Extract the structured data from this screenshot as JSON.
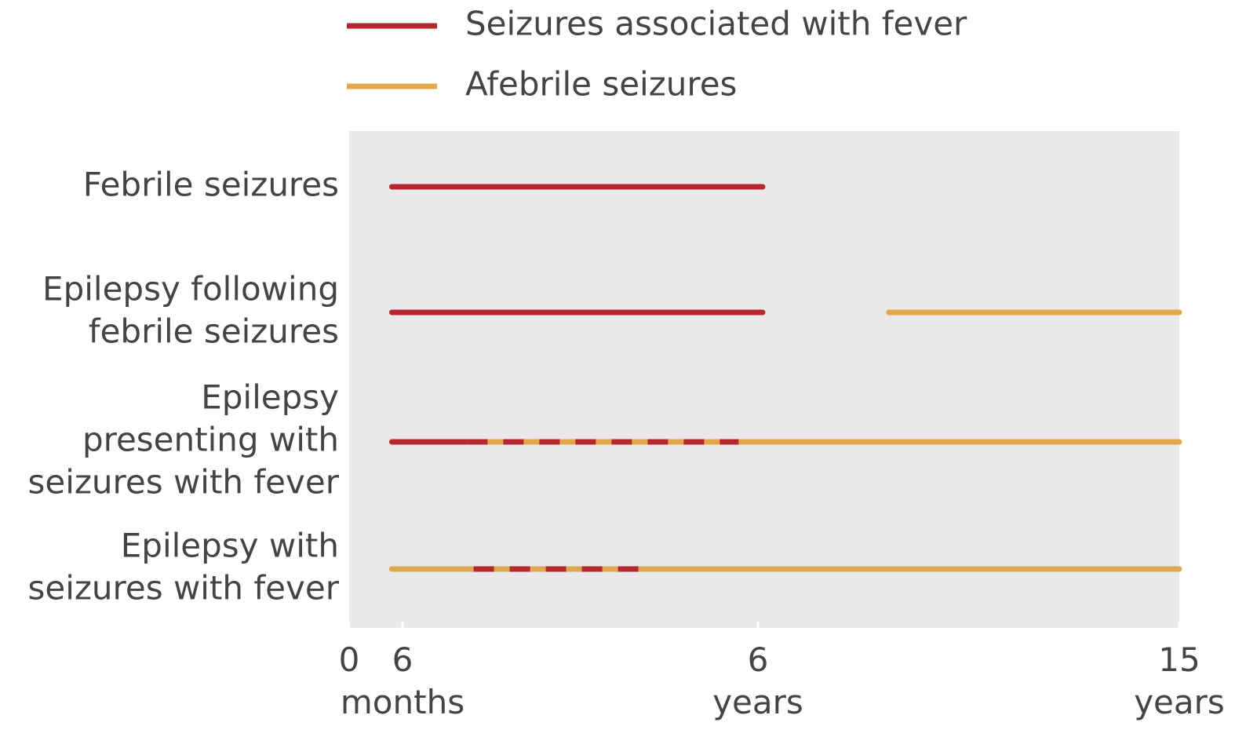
{
  "chart_data": {
    "type": "range",
    "series": [
      {
        "name": "Seizures associated with fever",
        "color": "#b5282e",
        "ranges": [
          [
            [
              0.4,
              6.1
            ]
          ],
          [
            [
              0.4,
              6.1
            ]
          ],
          [
            [
              0.4,
              1.5
            ]
          ],
          []
        ]
      },
      {
        "name": "Afebrile seizures",
        "color": "#e0a84a",
        "ranges": [
          [],
          [
            [
              8.8,
              15
            ]
          ],
          [
            [
              5.7,
              15
            ]
          ],
          [
            [
              0.4,
              15
            ]
          ]
        ]
      }
    ],
    "mixed_ranges": [
      [],
      [],
      [
        [
          1.5,
          5.7
        ]
      ],
      [
        [
          1.6,
          4.2
        ]
      ]
    ],
    "categories": [
      [
        "Febrile seizures"
      ],
      [
        "Epilepsy following",
        "febrile seizures"
      ],
      [
        "Epilepsy",
        "presenting with",
        "seizures with fever"
      ],
      [
        "Epilepsy with",
        "seizures with fever"
      ]
    ],
    "xlim": [
      0,
      15
    ],
    "xticks": [
      {
        "value": 0,
        "label": "0"
      },
      {
        "value": 0.5,
        "label": "6 months"
      },
      {
        "value": 6,
        "label": "6 years"
      },
      {
        "value": 15,
        "label": "15 years"
      }
    ],
    "background": "#ebe8ea"
  }
}
